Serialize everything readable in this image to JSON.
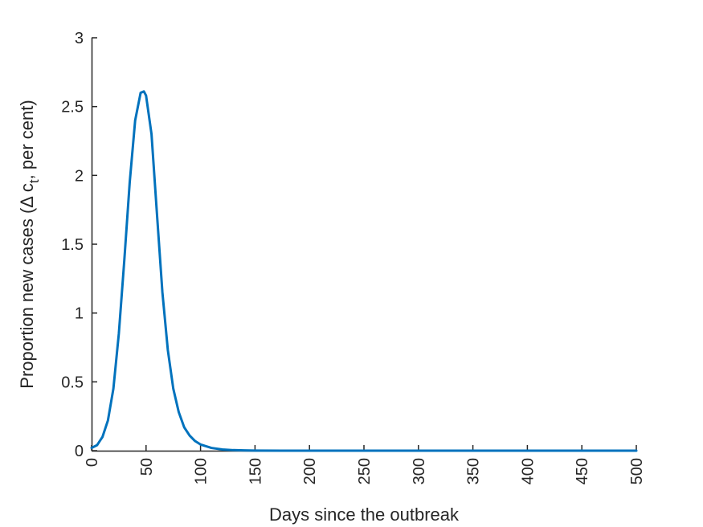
{
  "chart_data": {
    "type": "line",
    "title": "",
    "xlabel": "Days since the outbreak",
    "ylabel": {
      "prefix": "Proportion new cases (Δ c",
      "subscript": "t",
      "suffix": ", per cent)"
    },
    "xlim": [
      0,
      500
    ],
    "ylim": [
      0,
      3
    ],
    "xticks": [
      0,
      50,
      100,
      150,
      200,
      250,
      300,
      350,
      400,
      450,
      500
    ],
    "yticks": [
      0,
      0.5,
      1,
      1.5,
      2,
      2.5,
      3
    ],
    "yticklabels": [
      "0",
      "0.5",
      "1",
      "1.5",
      "2",
      "2.5",
      "3"
    ],
    "grid": false,
    "line_color": "#0072bd",
    "series": [
      {
        "x": [
          0,
          5,
          10,
          15,
          20,
          25,
          30,
          35,
          40,
          45,
          48,
          50,
          55,
          60,
          65,
          70,
          75,
          80,
          85,
          90,
          95,
          100,
          110,
          120,
          130,
          140,
          150,
          175,
          200,
          250,
          300,
          350,
          400,
          450,
          500
        ],
        "y": [
          0.02,
          0.04,
          0.1,
          0.22,
          0.45,
          0.85,
          1.38,
          1.95,
          2.4,
          2.6,
          2.61,
          2.58,
          2.3,
          1.72,
          1.15,
          0.73,
          0.45,
          0.28,
          0.17,
          0.11,
          0.07,
          0.045,
          0.02,
          0.009,
          0.004,
          0.002,
          0.001,
          0.0003,
          0.0001,
          0,
          0,
          0,
          0,
          0,
          0
        ]
      }
    ]
  }
}
